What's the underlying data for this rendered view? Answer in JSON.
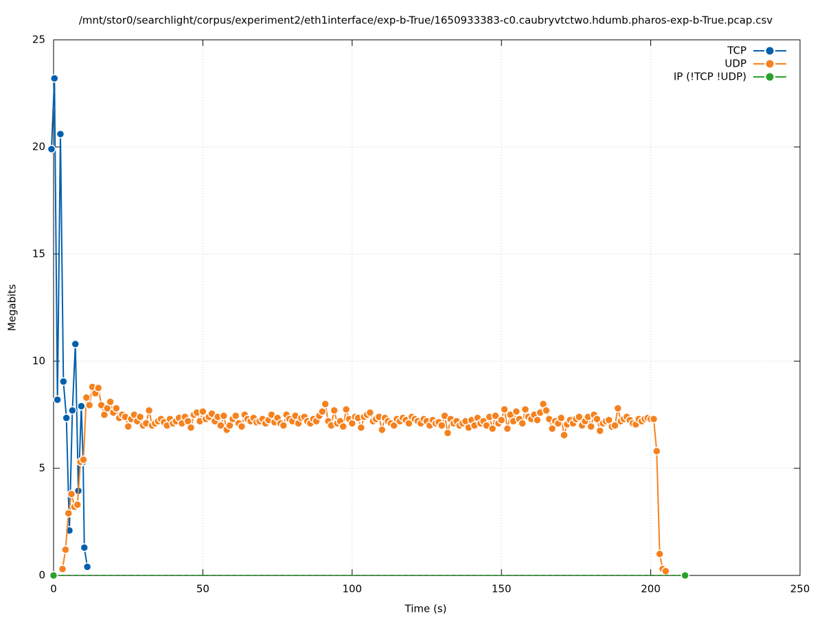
{
  "chart_data": {
    "type": "line",
    "title": "/mnt/stor0/searchlight/corpus/experiment2/eth1interface/exp-b-True/1650933383-c0.caubryvtctwo.hdumb.pharos-exp-b-True.pcap.csv",
    "x_label": "Time (s)",
    "y_label": "Megabits",
    "xlim": [
      0,
      250
    ],
    "xticks": [
      0,
      50,
      100,
      150,
      200,
      250
    ],
    "ylim": [
      0,
      25
    ],
    "yticks": [
      0,
      5,
      10,
      15,
      20,
      25
    ],
    "grid": true,
    "legend": "top-right",
    "series": [
      {
        "name": "TCP",
        "color": "#0060ad",
        "x": [
          -0.7,
          0.3,
          1.3,
          2.3,
          3.3,
          4.3,
          5.3,
          6.3,
          7.3,
          8.3,
          9.3,
          9.9,
          10.3,
          11.3
        ],
        "values": [
          19.9,
          23.2,
          8.2,
          20.6,
          9.05,
          7.35,
          2.1,
          7.7,
          10.8,
          3.95,
          7.9,
          5.3,
          1.3,
          0.4
        ]
      },
      {
        "name": "UDP",
        "color": "#f5821f",
        "x": [
          3,
          4,
          5,
          6,
          7,
          8,
          9,
          10,
          11,
          12,
          13,
          14,
          15,
          16,
          17,
          18,
          19,
          20,
          21,
          22,
          23,
          24,
          25,
          26,
          27,
          28,
          29,
          30,
          31,
          32,
          33,
          34,
          35,
          36,
          37,
          38,
          39,
          40,
          41,
          42,
          43,
          44,
          45,
          46,
          47,
          48,
          49,
          50,
          51,
          52,
          53,
          54,
          55,
          56,
          57,
          58,
          59,
          60,
          61,
          62,
          63,
          64,
          65,
          66,
          67,
          68,
          69,
          70,
          71,
          72,
          73,
          74,
          75,
          76,
          77,
          78,
          79,
          80,
          81,
          82,
          83,
          84,
          85,
          86,
          87,
          88,
          89,
          90,
          91,
          92,
          93,
          94,
          95,
          96,
          97,
          98,
          99,
          100,
          101,
          102,
          103,
          104,
          105,
          106,
          107,
          108,
          109,
          110,
          111,
          112,
          113,
          114,
          115,
          116,
          117,
          118,
          119,
          120,
          121,
          122,
          123,
          124,
          125,
          126,
          127,
          128,
          129,
          130,
          131,
          132,
          133,
          134,
          135,
          136,
          137,
          138,
          139,
          140,
          141,
          142,
          143,
          144,
          145,
          146,
          147,
          148,
          149,
          150,
          151,
          152,
          153,
          154,
          155,
          156,
          157,
          158,
          159,
          160,
          161,
          162,
          163,
          164,
          165,
          166,
          167,
          168,
          169,
          170,
          171,
          172,
          173,
          174,
          175,
          176,
          177,
          178,
          179,
          180,
          181,
          182,
          183,
          184,
          185,
          186,
          187,
          188,
          189,
          190,
          191,
          192,
          193,
          194,
          195,
          196,
          197,
          198,
          199,
          200,
          201,
          202,
          203,
          204,
          205
        ],
        "values": [
          0.3,
          1.2,
          2.9,
          3.8,
          3.2,
          3.3,
          5.3,
          5.4,
          8.3,
          7.95,
          8.8,
          8.5,
          8.75,
          7.95,
          7.5,
          7.8,
          8.1,
          7.6,
          7.8,
          7.35,
          7.5,
          7.4,
          6.95,
          7.3,
          7.5,
          7.2,
          7.4,
          7.0,
          7.1,
          7.7,
          7.0,
          7.1,
          7.2,
          7.3,
          7.15,
          7.0,
          7.3,
          7.1,
          7.2,
          7.35,
          7.1,
          7.4,
          7.2,
          6.9,
          7.5,
          7.6,
          7.2,
          7.65,
          7.3,
          7.4,
          7.55,
          7.2,
          7.4,
          7.0,
          7.45,
          6.8,
          7.0,
          7.3,
          7.45,
          7.1,
          6.95,
          7.5,
          7.3,
          7.2,
          7.35,
          7.15,
          7.2,
          7.3,
          7.1,
          7.25,
          7.5,
          7.15,
          7.35,
          7.1,
          7.0,
          7.5,
          7.3,
          7.2,
          7.45,
          7.1,
          7.35,
          7.4,
          7.2,
          7.1,
          7.3,
          7.2,
          7.45,
          7.65,
          8.0,
          7.2,
          7.0,
          7.7,
          7.1,
          7.2,
          6.95,
          7.75,
          7.3,
          7.1,
          7.4,
          7.35,
          6.9,
          7.4,
          7.5,
          7.6,
          7.2,
          7.3,
          7.4,
          6.8,
          7.35,
          7.2,
          7.1,
          7.0,
          7.3,
          7.2,
          7.35,
          7.25,
          7.1,
          7.4,
          7.3,
          7.2,
          7.1,
          7.3,
          7.2,
          7.0,
          7.25,
          7.1,
          7.15,
          7.0,
          7.45,
          6.65,
          7.3,
          7.1,
          7.2,
          7.0,
          7.1,
          7.2,
          6.9,
          7.25,
          7.0,
          7.35,
          7.1,
          7.2,
          7.0,
          7.4,
          6.85,
          7.45,
          7.1,
          7.25,
          7.75,
          6.85,
          7.5,
          7.2,
          7.65,
          7.3,
          7.1,
          7.75,
          7.4,
          7.3,
          7.5,
          7.25,
          7.6,
          8.0,
          7.7,
          7.3,
          6.85,
          7.2,
          7.1,
          7.35,
          6.55,
          7.05,
          7.25,
          7.1,
          7.3,
          7.4,
          7.0,
          7.2,
          7.4,
          6.95,
          7.5,
          7.3,
          6.75,
          7.1,
          7.2,
          7.25,
          6.95,
          7.0,
          7.8,
          7.2,
          7.3,
          7.4,
          7.25,
          7.1,
          7.05,
          7.3,
          7.2,
          7.3,
          7.35,
          7.3,
          7.3,
          5.8,
          1.0,
          0.3,
          0.2
        ]
      },
      {
        "name": "IP (!TCP  !UDP)",
        "color": "#2ca02c",
        "x": [
          0,
          211.5
        ],
        "values": [
          0,
          0
        ]
      }
    ]
  }
}
